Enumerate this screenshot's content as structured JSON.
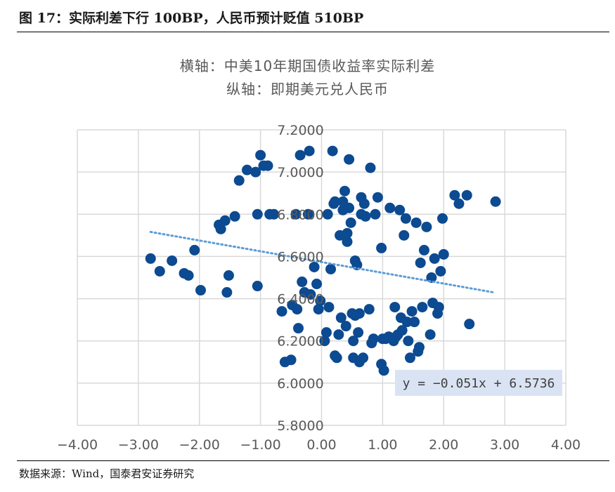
{
  "figure": {
    "title": "图 17：实际利差下行 100BP，人民币预计贬值 510BP",
    "source": "数据来源：Wind，国泰君安证券研究"
  },
  "colors": {
    "points": "#0c4a91",
    "trend": "#5b9bd5",
    "grid": "#d9d9d9",
    "axis_text": "#595959",
    "equation_bg": "#dae3f3"
  },
  "chart_data": {
    "type": "scatter",
    "subtitle_lines": [
      "横轴：中美10年期国债收益率实际利差",
      "纵轴：即期美元兑人民币"
    ],
    "xlabel": "中美10年期国债收益率实际利差",
    "ylabel": "即期美元兑人民币",
    "xlim": [
      -4,
      4
    ],
    "ylim": [
      5.8,
      7.2
    ],
    "x_ticks": [
      -4,
      -3,
      -2,
      -1,
      0,
      1,
      2,
      3,
      4
    ],
    "y_ticks": [
      5.8,
      6.0,
      6.2,
      6.4,
      6.6,
      6.8,
      7.0,
      7.2
    ],
    "x_tick_labels": [
      "−4.00",
      "−3.00",
      "−2.00",
      "−1.00",
      "0.00",
      "1.00",
      "2.00",
      "3.00",
      "4.00"
    ],
    "y_tick_labels": [
      "5.8000",
      "6.0000",
      "6.2000",
      "6.4000",
      "6.6000",
      "6.8000",
      "7.0000",
      "7.2000"
    ],
    "grid": true,
    "trendline": {
      "slope": -0.051,
      "intercept": 6.5736,
      "x_range": [
        -2.8,
        2.8
      ],
      "equation": "y = −0.051x + 6.5736",
      "style": "dotted"
    },
    "points": [
      [
        -2.8,
        6.59
      ],
      [
        -2.65,
        6.53
      ],
      [
        -2.45,
        6.58
      ],
      [
        -2.25,
        6.52
      ],
      [
        -2.18,
        6.51
      ],
      [
        -2.08,
        6.63
      ],
      [
        -1.98,
        6.44
      ],
      [
        -1.68,
        6.75
      ],
      [
        -1.65,
        6.73
      ],
      [
        -1.58,
        6.77
      ],
      [
        -1.55,
        6.43
      ],
      [
        -1.52,
        6.51
      ],
      [
        -1.42,
        6.79
      ],
      [
        -1.35,
        6.96
      ],
      [
        -1.22,
        7.01
      ],
      [
        -1.08,
        7.0
      ],
      [
        -1.05,
        6.46
      ],
      [
        -1.05,
        6.8
      ],
      [
        -1.0,
        7.08
      ],
      [
        -0.95,
        7.03
      ],
      [
        -0.88,
        7.03
      ],
      [
        -0.85,
        6.8
      ],
      [
        -0.78,
        6.8
      ],
      [
        -0.65,
        6.34
      ],
      [
        -0.6,
        6.1
      ],
      [
        -0.5,
        6.11
      ],
      [
        -0.48,
        6.37
      ],
      [
        -0.42,
        6.8
      ],
      [
        -0.4,
        6.35
      ],
      [
        -0.38,
        6.26
      ],
      [
        -0.35,
        7.08
      ],
      [
        -0.32,
        6.48
      ],
      [
        -0.28,
        6.43
      ],
      [
        -0.22,
        6.8
      ],
      [
        -0.2,
        7.1
      ],
      [
        -0.18,
        6.42
      ],
      [
        -0.12,
        6.55
      ],
      [
        -0.08,
        6.47
      ],
      [
        -0.05,
        6.35
      ],
      [
        -0.02,
        6.39
      ],
      [
        0.05,
        6.2
      ],
      [
        0.08,
        6.24
      ],
      [
        0.1,
        6.8
      ],
      [
        0.12,
        6.36
      ],
      [
        0.15,
        6.54
      ],
      [
        0.18,
        7.1
      ],
      [
        0.2,
        6.85
      ],
      [
        0.22,
        6.86
      ],
      [
        0.22,
        6.13
      ],
      [
        0.25,
        6.12
      ],
      [
        0.28,
        6.23
      ],
      [
        0.3,
        6.7
      ],
      [
        0.32,
        6.31
      ],
      [
        0.35,
        6.82
      ],
      [
        0.35,
        6.86
      ],
      [
        0.38,
        6.91
      ],
      [
        0.4,
        6.27
      ],
      [
        0.42,
        6.71
      ],
      [
        0.42,
        6.67
      ],
      [
        0.45,
        6.83
      ],
      [
        0.45,
        7.06
      ],
      [
        0.48,
        6.76
      ],
      [
        0.5,
        6.33
      ],
      [
        0.52,
        6.2
      ],
      [
        0.52,
        6.12
      ],
      [
        0.55,
        6.58
      ],
      [
        0.55,
        6.32
      ],
      [
        0.58,
        6.56
      ],
      [
        0.6,
        6.24
      ],
      [
        0.62,
        6.1
      ],
      [
        0.62,
        6.33
      ],
      [
        0.65,
        6.88
      ],
      [
        0.65,
        6.8
      ],
      [
        0.68,
        6.12
      ],
      [
        0.7,
        6.85
      ],
      [
        0.72,
        6.79
      ],
      [
        0.78,
        6.35
      ],
      [
        0.8,
        7.02
      ],
      [
        0.82,
        6.19
      ],
      [
        0.85,
        6.21
      ],
      [
        0.88,
        6.8
      ],
      [
        0.92,
        6.88
      ],
      [
        0.98,
        6.64
      ],
      [
        0.98,
        6.09
      ],
      [
        1.0,
        6.21
      ],
      [
        1.02,
        6.06
      ],
      [
        1.05,
        6.21
      ],
      [
        1.1,
        6.22
      ],
      [
        1.12,
        6.83
      ],
      [
        1.18,
        6.2
      ],
      [
        1.2,
        6.36
      ],
      [
        1.22,
        6.22
      ],
      [
        1.25,
        6.23
      ],
      [
        1.28,
        6.82
      ],
      [
        1.3,
        6.31
      ],
      [
        1.32,
        6.25
      ],
      [
        1.35,
        6.7
      ],
      [
        1.38,
        6.78
      ],
      [
        1.4,
        6.29
      ],
      [
        1.42,
        6.2
      ],
      [
        1.45,
        6.12
      ],
      [
        1.48,
        6.34
      ],
      [
        1.52,
        6.29
      ],
      [
        1.55,
        6.76
      ],
      [
        1.58,
        6.15
      ],
      [
        1.6,
        6.17
      ],
      [
        1.62,
        6.57
      ],
      [
        1.65,
        6.36
      ],
      [
        1.68,
        6.63
      ],
      [
        1.72,
        6.74
      ],
      [
        1.78,
        6.23
      ],
      [
        1.8,
        6.5
      ],
      [
        1.82,
        6.38
      ],
      [
        1.85,
        6.59
      ],
      [
        1.9,
        6.33
      ],
      [
        1.92,
        6.36
      ],
      [
        1.95,
        6.53
      ],
      [
        1.98,
        6.78
      ],
      [
        2.0,
        6.61
      ],
      [
        2.18,
        6.89
      ],
      [
        2.25,
        6.85
      ],
      [
        2.38,
        6.89
      ],
      [
        2.42,
        6.28
      ],
      [
        2.85,
        6.86
      ]
    ]
  }
}
